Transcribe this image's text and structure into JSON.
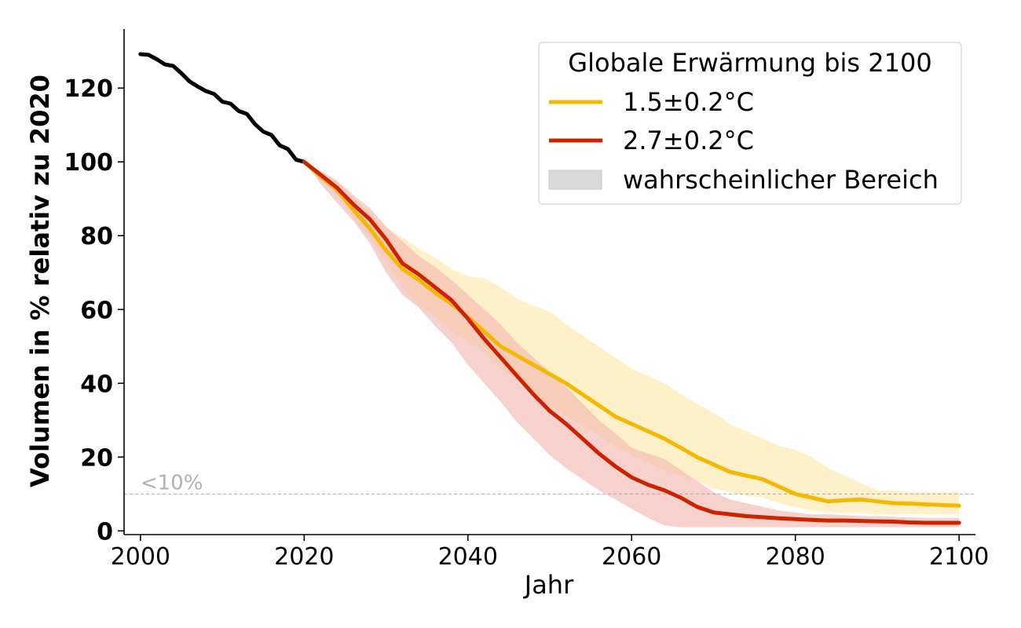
{
  "chart_data": {
    "type": "line",
    "xlabel": "Jahr",
    "ylabel": "Volumen in % relativ zu 2020",
    "xlim": [
      1998,
      2102
    ],
    "ylim": [
      -1,
      136
    ],
    "xticks": [
      "2000",
      "2020",
      "2040",
      "2060",
      "2080",
      "2100"
    ],
    "yticks": [
      "0",
      "20",
      "40",
      "60",
      "80",
      "100",
      "120"
    ],
    "grid": false,
    "threshold": {
      "y": 10,
      "label": "<10%",
      "color": "#b0b0b0"
    },
    "legend": {
      "title": "Globale Erwärmung bis 2100",
      "position": "top-right",
      "entries": [
        {
          "label": "1.5±0.2°C",
          "color": "#f5b800",
          "kind": "line"
        },
        {
          "label": "2.7±0.2°C",
          "color": "#cc2200",
          "kind": "line"
        },
        {
          "label": "wahrscheinlicher Bereich",
          "color": "#d9d9d9",
          "kind": "patch"
        }
      ]
    },
    "series": [
      {
        "kind": "observed",
        "color": "#000000",
        "x": [
          2000,
          2001,
          2002,
          2003,
          2004,
          2005,
          2006,
          2007,
          2008,
          2009,
          2010,
          2011,
          2012,
          2013,
          2014,
          2015,
          2016,
          2017,
          2018,
          2019,
          2020
        ],
        "y": [
          129.2,
          129.0,
          127.8,
          126.4,
          126.0,
          124.0,
          121.8,
          120.4,
          119.2,
          118.4,
          116.3,
          115.8,
          113.8,
          113.0,
          110.2,
          108.2,
          107.3,
          104.5,
          103.5,
          100.6,
          100.0
        ]
      },
      {
        "name": "1.5±0.2°C",
        "color": "#f5b800",
        "band_color": "#fdebb5",
        "x": [
          2020,
          2022,
          2024,
          2026,
          2028,
          2030,
          2032,
          2034,
          2036,
          2038,
          2040,
          2042,
          2044,
          2046,
          2048,
          2050,
          2052,
          2054,
          2056,
          2058,
          2060,
          2062,
          2064,
          2066,
          2068,
          2070,
          2072,
          2074,
          2076,
          2078,
          2080,
          2082,
          2084,
          2086,
          2088,
          2090,
          2092,
          2094,
          2096,
          2098,
          2100
        ],
        "y": [
          100,
          96,
          92.5,
          87,
          82,
          76,
          71,
          68,
          64.5,
          61.5,
          58,
          54,
          50,
          47.5,
          45,
          42.5,
          40,
          37,
          34,
          31,
          29,
          27,
          25,
          22.5,
          20,
          18,
          16,
          15,
          14,
          12,
          10,
          9,
          8,
          8.3,
          8.5,
          8,
          7.5,
          7.4,
          7.2,
          7,
          6.8
        ],
        "upper": [
          100,
          97.5,
          94.5,
          90.5,
          86,
          82,
          79.5,
          76.5,
          74,
          71,
          69,
          68.5,
          66,
          63,
          61,
          59.5,
          56,
          53,
          50,
          47,
          44,
          42,
          40,
          37,
          34.5,
          32,
          29,
          27,
          25,
          23,
          22,
          20,
          17,
          15,
          13,
          11,
          11,
          10.5,
          10.5,
          10.5,
          10.5
        ],
        "lower": [
          100,
          95,
          91,
          85,
          79.5,
          73,
          66,
          61,
          58,
          54,
          51.5,
          48.5,
          44,
          41,
          37.5,
          34,
          31,
          28.5,
          26,
          23,
          20.5,
          18.5,
          16.5,
          15,
          13.5,
          11.5,
          10.5,
          9.5,
          9,
          7.5,
          6.5,
          5.5,
          5,
          4.8,
          4.8,
          4.5,
          4.5,
          4.5,
          4.5,
          4.5,
          4.5
        ]
      },
      {
        "name": "2.7±0.2°C",
        "color": "#cc2200",
        "band_color": "#f2b9b0",
        "x": [
          2020,
          2022,
          2024,
          2026,
          2028,
          2030,
          2032,
          2034,
          2036,
          2038,
          2040,
          2042,
          2044,
          2046,
          2048,
          2050,
          2052,
          2054,
          2056,
          2058,
          2060,
          2062,
          2064,
          2066,
          2068,
          2070,
          2072,
          2074,
          2076,
          2078,
          2080,
          2082,
          2084,
          2086,
          2088,
          2090,
          2092,
          2094,
          2096,
          2098,
          2100
        ],
        "y": [
          100,
          96.5,
          93,
          88.5,
          84.5,
          79,
          72.5,
          69.5,
          66,
          62.5,
          57.5,
          52,
          47,
          42,
          37,
          32.5,
          29,
          25,
          21,
          17.5,
          14.5,
          12.5,
          11,
          9,
          6.5,
          5,
          4.5,
          4,
          3.7,
          3.4,
          3.2,
          3.0,
          2.8,
          2.8,
          2.7,
          2.6,
          2.5,
          2.3,
          2.2,
          2.2,
          2.2
        ],
        "upper": [
          100,
          97.5,
          95,
          91,
          87.5,
          82.5,
          78.5,
          74.5,
          71.5,
          68,
          64,
          60,
          56,
          51,
          47,
          43,
          39,
          34.5,
          30,
          26.5,
          22.5,
          21,
          19.5,
          16.5,
          13.5,
          10.5,
          8.5,
          7.5,
          6.5,
          5.5,
          5,
          4.5,
          4.5,
          4.3,
          4.0,
          4.0,
          3.8,
          3.6,
          3.5,
          3.5,
          3.5
        ],
        "lower": [
          100,
          94,
          89,
          84,
          78,
          70,
          64,
          60.5,
          55.5,
          51,
          45,
          40,
          35,
          29.5,
          25,
          20.5,
          17,
          14,
          11,
          8.5,
          6,
          3.5,
          1.5,
          1,
          1,
          1,
          1,
          1,
          1,
          1,
          1,
          1,
          1,
          1,
          1,
          1,
          1,
          1,
          1,
          1,
          1
        ]
      }
    ]
  }
}
